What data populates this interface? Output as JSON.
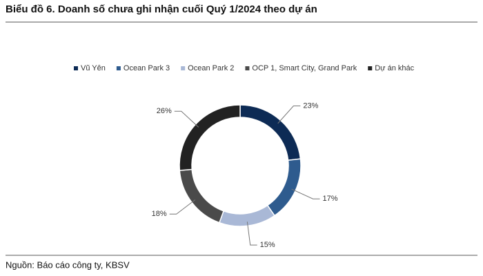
{
  "chart_data": {
    "type": "donut",
    "title": "Biểu đồ 6. Doanh số chưa ghi nhận cuối Quý 1/2024 theo dự án",
    "source": "Nguồn: Báo cáo công ty, KBSV",
    "categories": [
      "Vũ Yên",
      "Ocean Park 3",
      "Ocean Park 2",
      "OCP 1, Smart City, Grand Park",
      "Dự án khác"
    ],
    "values": [
      23,
      17,
      15,
      18,
      26
    ],
    "value_labels": [
      "23%",
      "17%",
      "15%",
      "18%",
      "26%"
    ],
    "colors": [
      "#0d2b55",
      "#2e5b8e",
      "#a9b8d6",
      "#4a4a4a",
      "#222222"
    ],
    "legend": "top"
  }
}
